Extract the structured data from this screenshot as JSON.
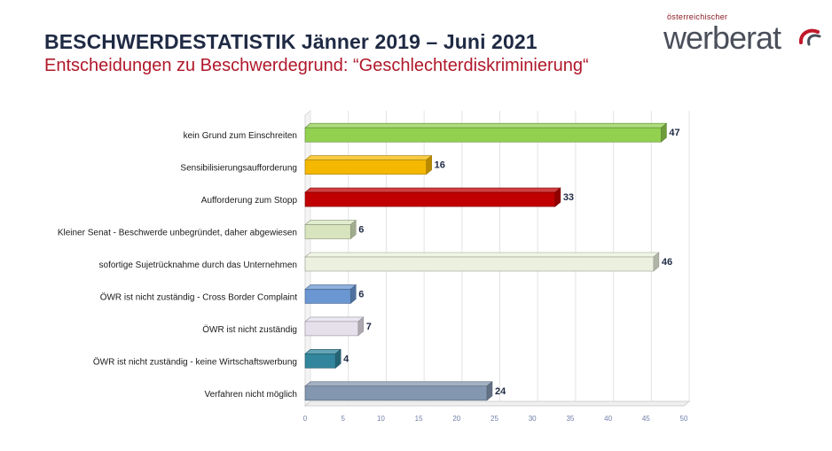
{
  "header": {
    "title": "BESCHWERDESTATISTIK Jänner 2019 – Juni 2021",
    "subtitle": "Entscheidungen zu Beschwerdegrund: “Geschlechterdiskriminierung“"
  },
  "logo": {
    "small_text": "österreichischer",
    "brand_text": "werberat",
    "icon": "swoosh-icon"
  },
  "chart_data": {
    "type": "bar",
    "orientation": "horizontal",
    "categories": [
      "kein Grund zum Einschreiten",
      "Sensibilisierungsaufforderung",
      "Aufforderung zum Stopp",
      "Kleiner Senat - Beschwerde unbegründet, daher abgewiesen",
      "sofortige Sujetrücknahme durch das Unternehmen",
      "ÖWR ist nicht zuständig - Cross Border Complaint",
      "ÖWR ist nicht zuständig",
      "ÖWR ist nicht zuständig - keine Wirtschaftswerbung",
      "Verfahren nicht möglich"
    ],
    "values": [
      47,
      16,
      33,
      6,
      46,
      6,
      7,
      4,
      24
    ],
    "colors": [
      "#92d050",
      "#f5b800",
      "#c00000",
      "#d7e4bd",
      "#ebf1de",
      "#6a96d2",
      "#e6e0ec",
      "#31859c",
      "#8497b0"
    ],
    "xlim": [
      0,
      50
    ],
    "xticks": [
      0,
      5,
      10,
      15,
      20,
      25,
      30,
      35,
      40,
      45,
      50
    ],
    "grid": true,
    "data_labels": true
  }
}
